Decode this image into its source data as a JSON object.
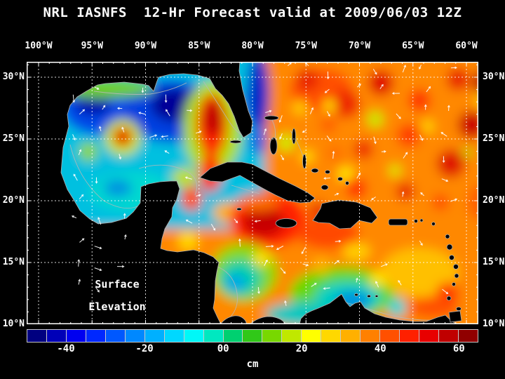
{
  "title": "NRL IASNFS  12-Hr Forecast valid at 2009/06/03 12Z",
  "axes": {
    "lon_labels": [
      "100°W",
      "95°W",
      "90°W",
      "85°W",
      "80°W",
      "75°W",
      "70°W",
      "65°W",
      "60°W"
    ],
    "lat_labels": [
      "30°N",
      "25°N",
      "20°N",
      "15°N",
      "10°N"
    ]
  },
  "annotation": {
    "line1": "Surface",
    "line2": "Elevation"
  },
  "colorbar": {
    "unit": "cm",
    "tick_labels": [
      "-40",
      "-20",
      "00",
      "20",
      "40",
      "60"
    ],
    "tick_positions_pct": [
      8.7,
      26.1,
      43.5,
      60.9,
      78.3,
      95.7
    ],
    "segment_colors": [
      "#000080",
      "#0000b8",
      "#0000f0",
      "#0028ff",
      "#0058ff",
      "#0088ff",
      "#00b0ff",
      "#00d8ff",
      "#00f8f8",
      "#00e8c0",
      "#00d070",
      "#30c818",
      "#78d800",
      "#c0e800",
      "#ffff00",
      "#ffd800",
      "#ffb000",
      "#ff8000",
      "#ff5000",
      "#ff2000",
      "#e80000",
      "#c00000",
      "#900000"
    ]
  },
  "colors": {
    "background": "#000000",
    "text": "#ffffff",
    "grid": "#ffffff",
    "coastline": "#b0b0b0",
    "land": "#000000"
  }
}
